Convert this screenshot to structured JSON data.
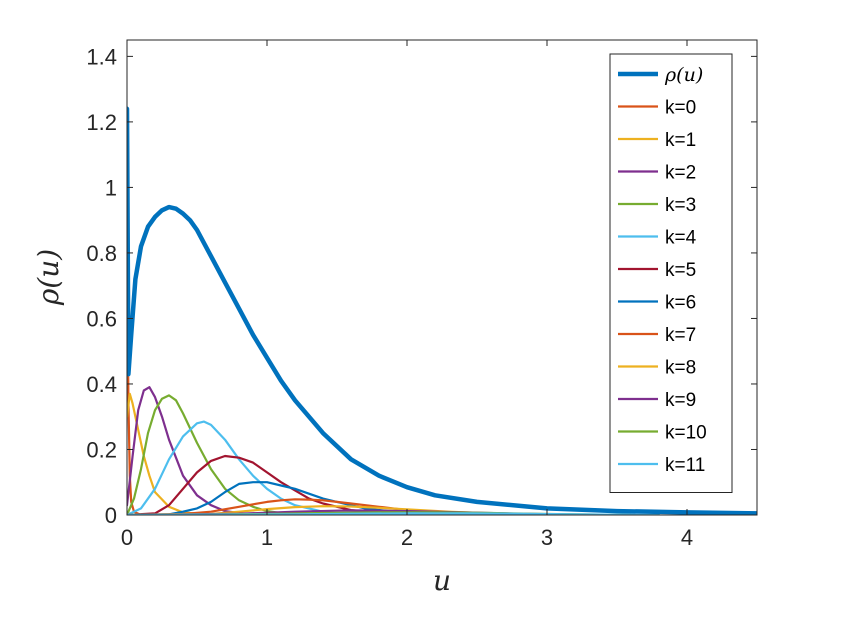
{
  "chart_data": {
    "type": "line",
    "xlabel": "u",
    "ylabel": "ρ(u)",
    "xlim": [
      0,
      4.5
    ],
    "ylim": [
      0,
      1.45
    ],
    "xticks": [
      "0",
      "1",
      "2",
      "3",
      "4"
    ],
    "yticks": [
      "0",
      "0.2",
      "0.4",
      "0.6",
      "0.8",
      "1",
      "1.2",
      "1.4"
    ],
    "grid": false,
    "legend_position": "top-right",
    "series": [
      {
        "name": "ρ(u)",
        "color": "#0072BD",
        "width": 4.5,
        "x": [
          0,
          0.01,
          0.03,
          0.06,
          0.1,
          0.15,
          0.2,
          0.25,
          0.3,
          0.35,
          0.4,
          0.45,
          0.5,
          0.6,
          0.7,
          0.8,
          0.9,
          1.0,
          1.1,
          1.2,
          1.4,
          1.6,
          1.8,
          2.0,
          2.2,
          2.5,
          3.0,
          3.5,
          4.0,
          4.5
        ],
        "y": [
          1.24,
          0.43,
          0.55,
          0.72,
          0.82,
          0.88,
          0.91,
          0.93,
          0.94,
          0.935,
          0.92,
          0.9,
          0.87,
          0.79,
          0.71,
          0.63,
          0.55,
          0.48,
          0.41,
          0.35,
          0.25,
          0.17,
          0.12,
          0.085,
          0.06,
          0.04,
          0.02,
          0.012,
          0.008,
          0.005
        ]
      },
      {
        "name": "k=0",
        "color": "#D95319",
        "width": 2.2,
        "x": [
          0,
          0.005,
          0.01,
          0.02,
          0.03,
          0.05,
          0.1
        ],
        "y": [
          0.92,
          0.6,
          0.35,
          0.12,
          0.04,
          0.01,
          0
        ]
      },
      {
        "name": "k=1",
        "color": "#EDB120",
        "width": 2.2,
        "x": [
          0,
          0.02,
          0.04,
          0.08,
          0.12,
          0.16,
          0.2,
          0.3,
          0.4,
          0.6
        ],
        "y": [
          0.3,
          0.37,
          0.34,
          0.26,
          0.18,
          0.12,
          0.07,
          0.025,
          0.008,
          0
        ]
      },
      {
        "name": "k=2",
        "color": "#7E2F8E",
        "width": 2.2,
        "x": [
          0,
          0.04,
          0.08,
          0.12,
          0.16,
          0.2,
          0.25,
          0.3,
          0.4,
          0.5,
          0.6,
          0.7,
          0.9
        ],
        "y": [
          0.03,
          0.18,
          0.32,
          0.38,
          0.39,
          0.36,
          0.3,
          0.23,
          0.12,
          0.06,
          0.03,
          0.012,
          0
        ]
      },
      {
        "name": "k=3",
        "color": "#77AC30",
        "width": 2.2,
        "x": [
          0,
          0.05,
          0.1,
          0.15,
          0.2,
          0.25,
          0.3,
          0.35,
          0.4,
          0.5,
          0.6,
          0.7,
          0.8,
          0.9,
          1.0,
          1.2
        ],
        "y": [
          0,
          0.05,
          0.14,
          0.25,
          0.32,
          0.355,
          0.365,
          0.35,
          0.31,
          0.22,
          0.14,
          0.08,
          0.045,
          0.025,
          0.012,
          0
        ]
      },
      {
        "name": "k=4",
        "color": "#4DBEEE",
        "width": 2.2,
        "x": [
          0,
          0.1,
          0.2,
          0.3,
          0.4,
          0.5,
          0.55,
          0.6,
          0.7,
          0.8,
          0.9,
          1.0,
          1.1,
          1.2,
          1.4,
          1.6
        ],
        "y": [
          0,
          0.02,
          0.08,
          0.17,
          0.24,
          0.28,
          0.285,
          0.275,
          0.23,
          0.17,
          0.12,
          0.08,
          0.05,
          0.03,
          0.01,
          0
        ]
      },
      {
        "name": "k=5",
        "color": "#A2142F",
        "width": 2.2,
        "x": [
          0,
          0.2,
          0.3,
          0.4,
          0.5,
          0.6,
          0.7,
          0.8,
          0.9,
          1.0,
          1.1,
          1.2,
          1.3,
          1.4,
          1.6,
          1.8,
          2.0
        ],
        "y": [
          0,
          0.005,
          0.03,
          0.08,
          0.13,
          0.165,
          0.18,
          0.175,
          0.16,
          0.13,
          0.1,
          0.075,
          0.05,
          0.035,
          0.015,
          0.006,
          0
        ]
      },
      {
        "name": "k=6",
        "color": "#0072BD",
        "width": 2.2,
        "x": [
          0,
          0.3,
          0.4,
          0.5,
          0.6,
          0.7,
          0.8,
          0.9,
          1.0,
          1.1,
          1.2,
          1.3,
          1.4,
          1.5,
          1.7,
          1.9,
          2.2
        ],
        "y": [
          0,
          0.002,
          0.01,
          0.02,
          0.04,
          0.07,
          0.095,
          0.1,
          0.1,
          0.09,
          0.08,
          0.065,
          0.05,
          0.04,
          0.02,
          0.01,
          0
        ]
      },
      {
        "name": "k=7",
        "color": "#D95319",
        "width": 2.2,
        "x": [
          0,
          0.4,
          0.6,
          0.8,
          1.0,
          1.1,
          1.2,
          1.3,
          1.4,
          1.5,
          1.6,
          1.8,
          2.0,
          2.3,
          2.6
        ],
        "y": [
          0,
          0.003,
          0.01,
          0.025,
          0.04,
          0.045,
          0.048,
          0.047,
          0.045,
          0.04,
          0.035,
          0.025,
          0.015,
          0.006,
          0
        ]
      },
      {
        "name": "k=8",
        "color": "#EDB120",
        "width": 2.2,
        "x": [
          0,
          0.6,
          0.8,
          1.0,
          1.2,
          1.4,
          1.6,
          1.8,
          2.0,
          2.3,
          2.6,
          3.0
        ],
        "y": [
          0,
          0.003,
          0.01,
          0.018,
          0.024,
          0.027,
          0.026,
          0.022,
          0.017,
          0.01,
          0.005,
          0
        ]
      },
      {
        "name": "k=9",
        "color": "#7E2F8E",
        "width": 2.2,
        "x": [
          0,
          0.8,
          1.2,
          1.6,
          2.0,
          2.4,
          2.8,
          3.3
        ],
        "y": [
          0,
          0.004,
          0.01,
          0.014,
          0.012,
          0.008,
          0.004,
          0
        ]
      },
      {
        "name": "k=10",
        "color": "#77AC30",
        "width": 2.2,
        "x": [
          0,
          1.0,
          1.4,
          1.8,
          2.2,
          2.6,
          3.0,
          3.6
        ],
        "y": [
          0,
          0.003,
          0.006,
          0.008,
          0.008,
          0.006,
          0.003,
          0
        ]
      },
      {
        "name": "k=11",
        "color": "#4DBEEE",
        "width": 2.2,
        "x": [
          0,
          1.2,
          1.6,
          2.0,
          2.4,
          2.8,
          3.2,
          3.8
        ],
        "y": [
          0,
          0.002,
          0.004,
          0.005,
          0.005,
          0.004,
          0.002,
          0
        ]
      }
    ]
  }
}
